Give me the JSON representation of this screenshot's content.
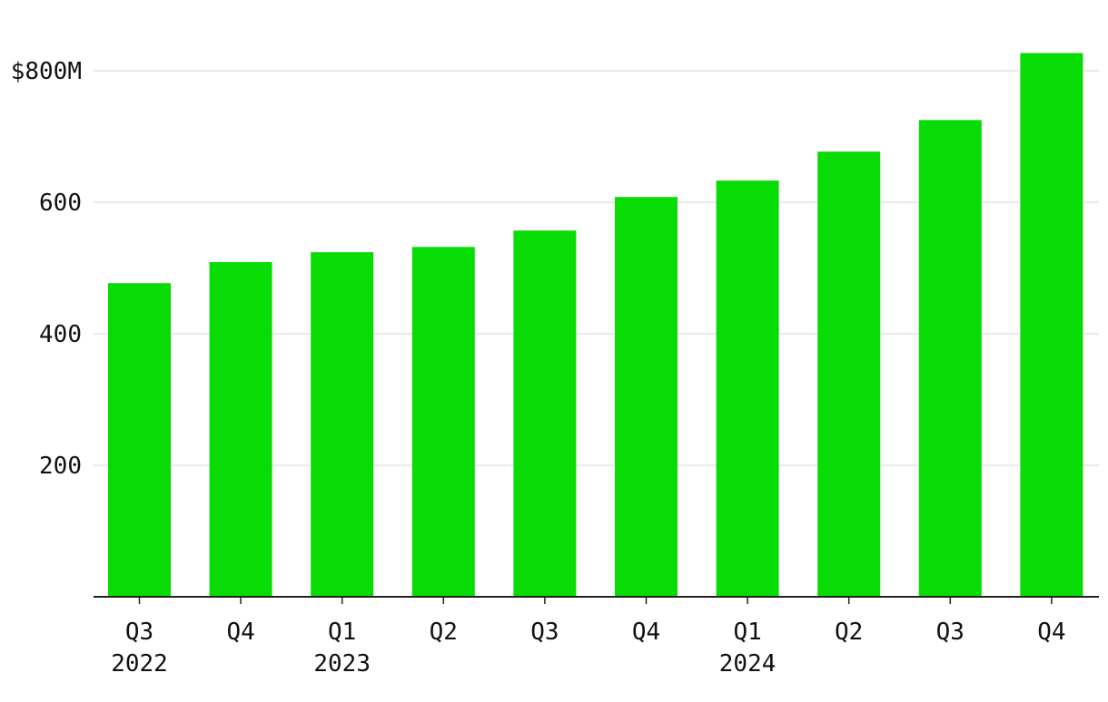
{
  "chart_data": {
    "type": "bar",
    "title": "",
    "xlabel": "",
    "ylabel": "",
    "categories": [
      "Q3",
      "Q4",
      "Q1",
      "Q2",
      "Q3",
      "Q4",
      "Q1",
      "Q2",
      "Q3",
      "Q4"
    ],
    "year_labels": [
      "2022",
      "",
      "2023",
      "",
      "",
      "",
      "2024",
      "",
      "",
      ""
    ],
    "values": [
      477,
      509,
      524,
      532,
      557,
      608,
      633,
      677,
      725,
      827
    ],
    "ylim": [
      0,
      850
    ],
    "yticks": [
      200,
      400,
      600,
      800
    ],
    "ytick_labels": [
      "200",
      "400",
      "600",
      "$800M"
    ],
    "grid": true,
    "bar_color": "#09db05",
    "grid_color": "#e3e3e3",
    "axis_color": "#222222"
  }
}
